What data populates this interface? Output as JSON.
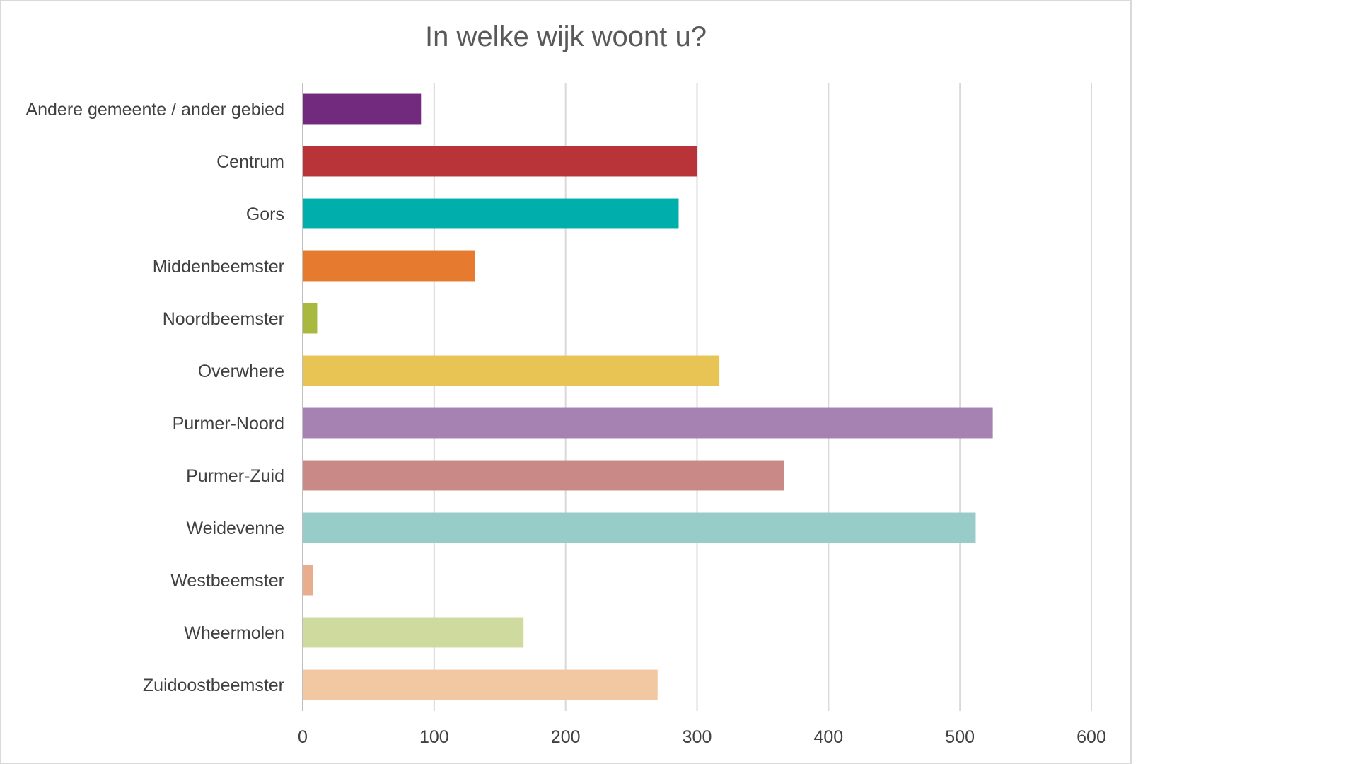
{
  "chart_data": {
    "type": "bar",
    "orientation": "horizontal",
    "title": "In welke wijk woont u?",
    "xlabel": "",
    "ylabel": "",
    "xlim": [
      0,
      600
    ],
    "ticks": [
      "0",
      "100",
      "200",
      "300",
      "400",
      "500",
      "600"
    ],
    "tick_values": [
      0,
      100,
      200,
      300,
      400,
      500,
      600
    ],
    "grid": true,
    "legend": "none",
    "categories": [
      "Andere gemeente / ander gebied",
      "Centrum",
      "Gors",
      "Middenbeemster",
      "Noordbeemster",
      "Overwhere",
      "Purmer-Noord",
      "Purmer-Zuid",
      "Weidevenne",
      "Westbeemster",
      "Wheermolen",
      "Zuidoostbeemster"
    ],
    "values": [
      90,
      300,
      286,
      131,
      11,
      317,
      525,
      366,
      512,
      8,
      168,
      270
    ],
    "colors": [
      "#722a7f",
      "#b83439",
      "#00aeac",
      "#e67a2f",
      "#a9b940",
      "#e8c454",
      "#a582b1",
      "#c98a87",
      "#97ccc9",
      "#e8ad8c",
      "#cfda9e",
      "#f2c8a3"
    ]
  },
  "style": {
    "grid_color": "#d9d9d9",
    "axis_color": "#bfbfbf",
    "frame_color": "#d9d9d9"
  }
}
